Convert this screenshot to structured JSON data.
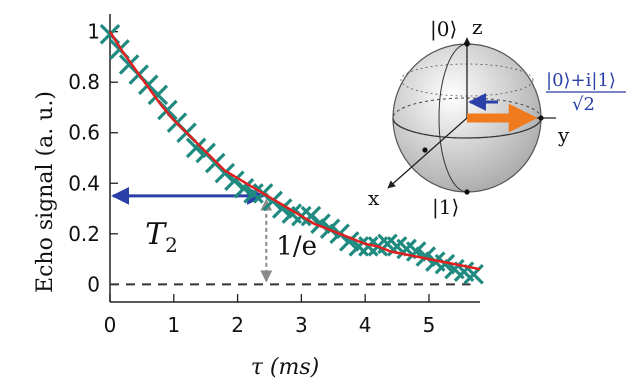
{
  "chart_data": {
    "type": "scatter",
    "xlabel": "τ (ms)",
    "ylabel": "Echo signal (a. u.)",
    "xlim": [
      0,
      5.8
    ],
    "ylim": [
      -0.07,
      1.07
    ],
    "xticks": [
      "0",
      "1",
      "2",
      "3",
      "4",
      "5"
    ],
    "yticks": [
      "0",
      "0.2",
      "0.4",
      "0.6",
      "0.8",
      "1"
    ],
    "grid": false,
    "legend": "none",
    "series": [
      {
        "marker": "x",
        "color": "#1f8a80",
        "x": [
          0.0,
          0.15,
          0.3,
          0.45,
          0.6,
          0.75,
          0.9,
          1.05,
          1.2,
          1.35,
          1.5,
          1.65,
          1.8,
          1.95,
          2.1,
          2.25,
          2.4,
          2.55,
          2.7,
          2.85,
          3.0,
          3.15,
          3.3,
          3.45,
          3.6,
          3.75,
          3.9,
          4.05,
          4.2,
          4.35,
          4.5,
          4.65,
          4.8,
          4.95,
          5.1,
          5.25,
          5.4,
          5.55,
          5.7
        ],
        "y": [
          0.99,
          0.93,
          0.87,
          0.83,
          0.79,
          0.75,
          0.69,
          0.64,
          0.6,
          0.54,
          0.52,
          0.48,
          0.44,
          0.41,
          0.38,
          0.36,
          0.36,
          0.33,
          0.3,
          0.28,
          0.27,
          0.27,
          0.24,
          0.22,
          0.2,
          0.17,
          0.15,
          0.15,
          0.15,
          0.16,
          0.15,
          0.14,
          0.13,
          0.11,
          0.09,
          0.08,
          0.06,
          0.05,
          0.04
        ]
      },
      {
        "marker": "line",
        "color": "#e02020",
        "x": [
          0.0,
          0.2,
          0.4,
          0.6,
          0.8,
          1.0,
          1.2,
          1.4,
          1.6,
          1.8,
          2.0,
          2.2,
          2.4,
          2.6,
          2.8,
          3.0,
          3.2,
          3.4,
          3.6,
          3.8,
          4.0,
          4.2,
          4.4,
          4.6,
          4.8,
          5.0,
          5.2,
          5.4,
          5.6,
          5.8
        ],
        "y": [
          1.0,
          0.92,
          0.85,
          0.78,
          0.71,
          0.65,
          0.6,
          0.55,
          0.5,
          0.45,
          0.42,
          0.39,
          0.36,
          0.33,
          0.3,
          0.27,
          0.24,
          0.22,
          0.2,
          0.18,
          0.16,
          0.15,
          0.13,
          0.12,
          0.11,
          0.1,
          0.09,
          0.08,
          0.07,
          0.06
        ]
      }
    ],
    "annotations": {
      "t2_label": "T",
      "t2_sub": "2",
      "t2_from_x": 0.0,
      "t2_to_x": 2.45,
      "t2_level_y": 0.35,
      "inv_e_label": "1/e",
      "inv_e_x": 2.45,
      "baseline_y": 0.0
    },
    "colors": {
      "arrow": "#2a3fa8",
      "data": "#1f8a80",
      "fit": "#e02020",
      "baseline": "#333333",
      "gray_arrow": "#8a8a8a"
    }
  },
  "inset": {
    "ket0": "|0⟩",
    "ket1": "|1⟩",
    "axis_z": "z",
    "axis_y": "y",
    "axis_x": "x",
    "superposition_num": "|0⟩+i|1⟩",
    "superposition_den": "√2",
    "colors": {
      "big_arrow": "#f07a1e",
      "small_arrow": "#2a3fa8",
      "sphere_light": "#ffffff",
      "sphere_dark": "#a9a9a9"
    }
  }
}
